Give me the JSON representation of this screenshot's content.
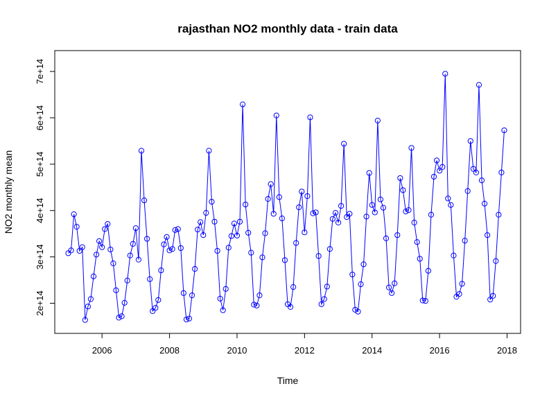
{
  "chart_data": {
    "type": "line",
    "title": "rajasthan NO2 monthly data - train data",
    "xlabel": "Time",
    "ylabel": "NO2 monthly mean",
    "xlim": [
      2004.6,
      2018.4
    ],
    "ylim": [
      135000000000000.0,
      745000000000000.0
    ],
    "x_ticks": [
      2006,
      2008,
      2010,
      2012,
      2014,
      2016,
      2018
    ],
    "x_tick_labels": [
      "2006",
      "2008",
      "2010",
      "2012",
      "2014",
      "2016",
      "2018"
    ],
    "y_ticks": [
      200000000000000.0,
      300000000000000.0,
      400000000000000.0,
      500000000000000.0,
      600000000000000.0,
      700000000000000.0
    ],
    "y_tick_labels": [
      "2e+14",
      "3e+14",
      "4e+14",
      "5e+14",
      "6e+14",
      "7e+14"
    ],
    "line_color": "#0000ff",
    "grid": false,
    "start": [
      2005,
      1
    ],
    "frequency": 12,
    "values": [
      308000000000000.0,
      314000000000000.0,
      392000000000000.0,
      365000000000000.0,
      313000000000000.0,
      321000000000000.0,
      164000000000000.0,
      193000000000000.0,
      209000000000000.0,
      258000000000000.0,
      305000000000000.0,
      334000000000000.0,
      321000000000000.0,
      360000000000000.0,
      371000000000000.0,
      316000000000000.0,
      286000000000000.0,
      228000000000000.0,
      169000000000000.0,
      172000000000000.0,
      201000000000000.0,
      249000000000000.0,
      303000000000000.0,
      328000000000000.0,
      362000000000000.0,
      294000000000000.0,
      529000000000000.0,
      422000000000000.0,
      339000000000000.0,
      252000000000000.0,
      183000000000000.0,
      190000000000000.0,
      207000000000000.0,
      271000000000000.0,
      327000000000000.0,
      343000000000000.0,
      314000000000000.0,
      317000000000000.0,
      358000000000000.0,
      360000000000000.0,
      319000000000000.0,
      222000000000000.0,
      165000000000000.0,
      167000000000000.0,
      217000000000000.0,
      274000000000000.0,
      359000000000000.0,
      375000000000000.0,
      347000000000000.0,
      395000000000000.0,
      529000000000000.0,
      419000000000000.0,
      376000000000000.0,
      313000000000000.0,
      210000000000000.0,
      185000000000000.0,
      231000000000000.0,
      320000000000000.0,
      345000000000000.0,
      372000000000000.0,
      346000000000000.0,
      376000000000000.0,
      629000000000000.0,
      413000000000000.0,
      352000000000000.0,
      309000000000000.0,
      197000000000000.0,
      195000000000000.0,
      217000000000000.0,
      299000000000000.0,
      351000000000000.0,
      425000000000000.0,
      457000000000000.0,
      393000000000000.0,
      605000000000000.0,
      429000000000000.0,
      383000000000000.0,
      293000000000000.0,
      198000000000000.0,
      192000000000000.0,
      235000000000000.0,
      330000000000000.0,
      407000000000000.0,
      441000000000000.0,
      353000000000000.0,
      431000000000000.0,
      601000000000000.0,
      394000000000000.0,
      396000000000000.0,
      302000000000000.0,
      198000000000000.0,
      209000000000000.0,
      236000000000000.0,
      317000000000000.0,
      382000000000000.0,
      395000000000000.0,
      374000000000000.0,
      410000000000000.0,
      544000000000000.0,
      386000000000000.0,
      393000000000000.0,
      262000000000000.0,
      186000000000000.0,
      182000000000000.0,
      241000000000000.0,
      284000000000000.0,
      387000000000000.0,
      481000000000000.0,
      412000000000000.0,
      396000000000000.0,
      594000000000000.0,
      424000000000000.0,
      406000000000000.0,
      340000000000000.0,
      234000000000000.0,
      222000000000000.0,
      243000000000000.0,
      347000000000000.0,
      470000000000000.0,
      444000000000000.0,
      398000000000000.0,
      401000000000000.0,
      535000000000000.0,
      374000000000000.0,
      332000000000000.0,
      296000000000000.0,
      206000000000000.0,
      205000000000000.0,
      270000000000000.0,
      391000000000000.0,
      473000000000000.0,
      508000000000000.0,
      486000000000000.0,
      494000000000000.0,
      695000000000000.0,
      426000000000000.0,
      412000000000000.0,
      303000000000000.0,
      214000000000000.0,
      220000000000000.0,
      242000000000000.0,
      335000000000000.0,
      442000000000000.0,
      550000000000000.0,
      490000000000000.0,
      482000000000000.0,
      671000000000000.0,
      465000000000000.0,
      415000000000000.0,
      347000000000000.0,
      208000000000000.0,
      216000000000000.0,
      291000000000000.0,
      391000000000000.0,
      482000000000000.0,
      573000000000000.0
    ]
  }
}
